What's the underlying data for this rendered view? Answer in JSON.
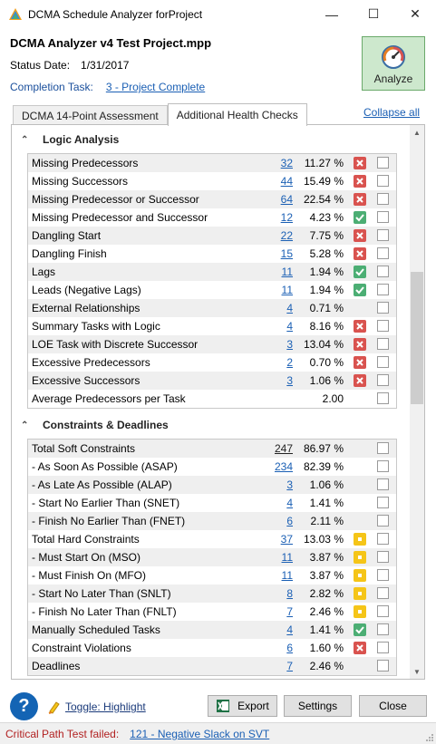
{
  "window": {
    "title": "DCMA Schedule Analyzer forProject",
    "controls": {
      "minimize": "—",
      "maximize": "☐",
      "close": "✕"
    }
  },
  "project": {
    "name": "DCMA Analyzer v4 Test Project.mpp",
    "status_label": "Status Date:",
    "status_value": "1/31/2017",
    "completion_label": "Completion Task:",
    "completion_value": "3 - Project Complete"
  },
  "analyze_button": {
    "label": "Analyze",
    "icon": "gauge-icon"
  },
  "tabs": [
    {
      "label": "DCMA 14-Point Assessment",
      "active": false
    },
    {
      "label": "Additional Health Checks",
      "active": true
    }
  ],
  "collapse_all": "Collapse all",
  "sections": {
    "logic": {
      "title": "Logic Analysis",
      "rows": [
        {
          "name": "Missing Predecessors",
          "count": "32",
          "pct": "11.27 %",
          "status": "fail"
        },
        {
          "name": "Missing Successors",
          "count": "44",
          "pct": "15.49 %",
          "status": "fail"
        },
        {
          "name": "Missing Predecessor or Successor",
          "count": "64",
          "pct": "22.54 %",
          "status": "fail"
        },
        {
          "name": "Missing Predecessor and Successor",
          "count": "12",
          "pct": "4.23 %",
          "status": "pass"
        },
        {
          "name": "Dangling Start",
          "count": "22",
          "pct": "7.75 %",
          "status": "fail"
        },
        {
          "name": "Dangling Finish",
          "count": "15",
          "pct": "5.28 %",
          "status": "fail"
        },
        {
          "name": "Lags",
          "count": "11",
          "pct": "1.94 %",
          "status": "pass"
        },
        {
          "name": "Leads (Negative Lags)",
          "count": "11",
          "pct": "1.94 %",
          "status": "pass"
        },
        {
          "name": "External Relationships",
          "count": "4",
          "pct": "0.71 %",
          "status": "none"
        },
        {
          "name": "Summary Tasks with Logic",
          "count": "4",
          "pct": "8.16 %",
          "status": "fail"
        },
        {
          "name": "LOE Task with Discrete Successor",
          "count": "3",
          "pct": "13.04 %",
          "status": "fail"
        },
        {
          "name": "Excessive Predecessors",
          "count": "2",
          "pct": "0.70 %",
          "status": "fail"
        },
        {
          "name": "Excessive Successors",
          "count": "3",
          "pct": "1.06 %",
          "status": "fail"
        },
        {
          "name": "Average Predecessors per Task",
          "count": "",
          "pct": "2.00",
          "status": "none"
        }
      ]
    },
    "constraints": {
      "title": "Constraints & Deadlines",
      "rows": [
        {
          "name": "Total Soft Constraints",
          "count": "247",
          "pct": "86.97 %",
          "status": "none",
          "plain": true
        },
        {
          "name": "- As Soon As Possible (ASAP)",
          "count": "234",
          "pct": "82.39 %",
          "status": "none"
        },
        {
          "name": "- As Late As Possible (ALAP)",
          "count": "3",
          "pct": "1.06 %",
          "status": "none"
        },
        {
          "name": "- Start No Earlier Than (SNET)",
          "count": "4",
          "pct": "1.41 %",
          "status": "none"
        },
        {
          "name": "- Finish No Earlier Than (FNET)",
          "count": "6",
          "pct": "2.11 %",
          "status": "none"
        },
        {
          "name": "Total Hard Constraints",
          "count": "37",
          "pct": "13.03 %",
          "status": "warn"
        },
        {
          "name": "- Must Start On (MSO)",
          "count": "11",
          "pct": "3.87 %",
          "status": "warn"
        },
        {
          "name": "- Must Finish On (MFO)",
          "count": "11",
          "pct": "3.87 %",
          "status": "warn"
        },
        {
          "name": "- Start No Later Than (SNLT)",
          "count": "8",
          "pct": "2.82 %",
          "status": "warn"
        },
        {
          "name": "- Finish No Later Than (FNLT)",
          "count": "7",
          "pct": "2.46 %",
          "status": "warn"
        },
        {
          "name": "Manually Scheduled Tasks",
          "count": "4",
          "pct": "1.41 %",
          "status": "pass"
        },
        {
          "name": "Constraint Violations",
          "count": "6",
          "pct": "1.60 %",
          "status": "fail"
        },
        {
          "name": "Deadlines",
          "count": "7",
          "pct": "2.46 %",
          "status": "none"
        }
      ]
    }
  },
  "bottom": {
    "help": "?",
    "toggle_label": "Toggle: Highlight",
    "export": "Export",
    "settings": "Settings",
    "close": "Close"
  },
  "statusbar": {
    "message": "Critical Path Test failed:",
    "link": "121 - Negative Slack on SVT"
  },
  "colors": {
    "fail": "#d9534f",
    "pass": "#4cae74",
    "warn": "#f5c518",
    "link": "#1a5fb4"
  }
}
